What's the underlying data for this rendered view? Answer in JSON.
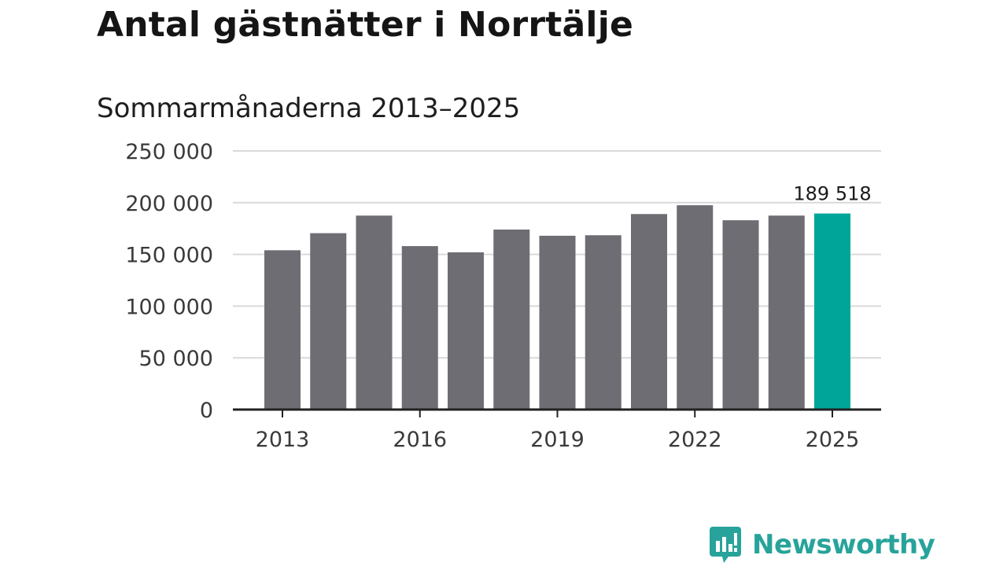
{
  "title": "Antal gästnätter i Norrtälje",
  "subtitle": "Sommarmånaderna 2013–2025",
  "logo": {
    "text": "Newsworthy",
    "icon": "newsworthy-chart-icon",
    "color": "#27a39b"
  },
  "chart_data": {
    "type": "bar",
    "categories": [
      "2013",
      "2014",
      "2015",
      "2016",
      "2017",
      "2018",
      "2019",
      "2020",
      "2021",
      "2022",
      "2023",
      "2024",
      "2025"
    ],
    "values": [
      154000,
      170500,
      187500,
      158000,
      152000,
      174000,
      168000,
      168500,
      189000,
      197500,
      183000,
      187500,
      189518
    ],
    "x_tick_labels": [
      "2013",
      "2016",
      "2019",
      "2022",
      "2025"
    ],
    "y_ticks": [
      0,
      50000,
      100000,
      150000,
      200000,
      250000
    ],
    "y_tick_labels": [
      "0",
      "50 000",
      "100 000",
      "150 000",
      "200 000",
      "250 000"
    ],
    "ylim": [
      0,
      250000
    ],
    "grid": true,
    "highlight": {
      "category": "2025",
      "label": "189 518"
    },
    "colors": {
      "bar": "#6e6d73",
      "highlight": "#00a599",
      "grid": "#d9d9d9",
      "axis": "#222222"
    }
  }
}
